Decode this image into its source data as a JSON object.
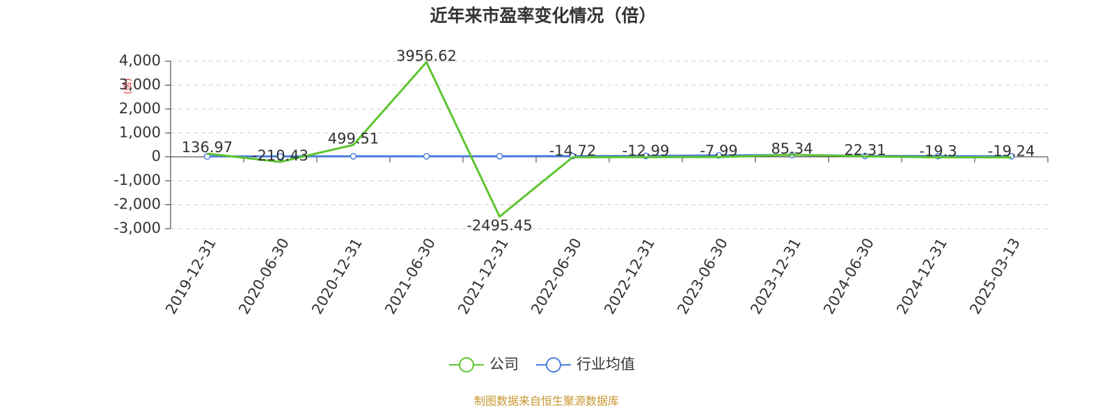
{
  "chart_data": {
    "type": "line",
    "title": "近年来市盈率变化情况（倍）",
    "ylabel": "(倍)",
    "categories": [
      "2019-12-31",
      "2020-06-30",
      "2020-12-31",
      "2021-06-30",
      "2021-12-31",
      "2022-06-30",
      "2022-12-31",
      "2023-06-30",
      "2023-12-31",
      "2024-06-30",
      "2024-12-31",
      "2025-03-13"
    ],
    "series": [
      {
        "name": "公司",
        "color": "#5cc52e",
        "values": [
          136.97,
          -210.43,
          499.51,
          3956.62,
          -2495.45,
          -14.72,
          -12.99,
          -7.99,
          85.34,
          22.31,
          -19.3,
          -19.24
        ]
      },
      {
        "name": "行业均值",
        "color": "#4a7fdc",
        "values": [
          20,
          20,
          25,
          25,
          25,
          30,
          40,
          60,
          80,
          40,
          30,
          25
        ]
      }
    ],
    "ylim": [
      -3000,
      4000
    ],
    "yticks": [
      {
        "value": -3000,
        "label": "-3,000"
      },
      {
        "value": -2000,
        "label": "-2,000"
      },
      {
        "value": -1000,
        "label": "-1,000"
      },
      0,
      {
        "value": 1000,
        "label": "1,000"
      },
      {
        "value": 2000,
        "label": "2,000"
      },
      {
        "value": 3000,
        "label": "3,000"
      },
      {
        "value": 4000,
        "label": "4,000"
      }
    ],
    "grid": true,
    "source": "制图数据来自恒生聚源数据库"
  }
}
